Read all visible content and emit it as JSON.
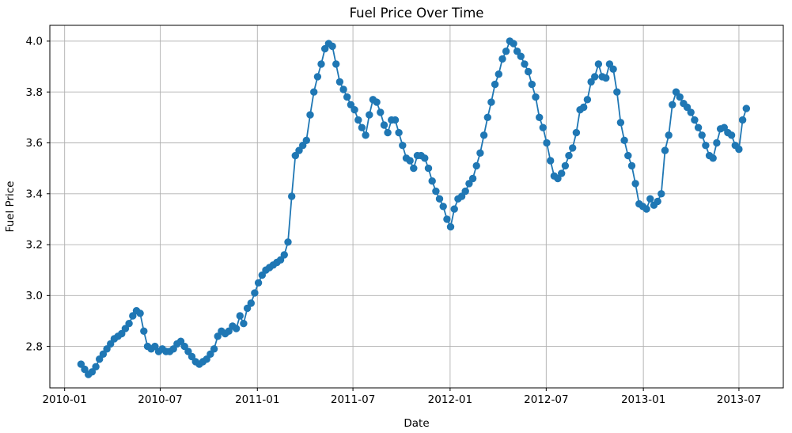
{
  "chart_data": {
    "type": "line",
    "title": "Fuel Price Over Time",
    "xlabel": "Date",
    "ylabel": "Fuel Price",
    "grid": true,
    "legend": "none",
    "background_color": "#ffffff",
    "grid_color": "#b0b0b0",
    "spine_color": "#000000",
    "xlim": [
      "2009-12-04",
      "2013-09-23"
    ],
    "ylim": [
      2.637,
      4.062
    ],
    "yticks": [
      2.8,
      3.0,
      3.2,
      3.4,
      3.6,
      3.8,
      4.0
    ],
    "xticks": [
      {
        "value": "2010-01-01",
        "label": "2010-01"
      },
      {
        "value": "2010-07-01",
        "label": "2010-07"
      },
      {
        "value": "2011-01-01",
        "label": "2011-01"
      },
      {
        "value": "2011-07-01",
        "label": "2011-07"
      },
      {
        "value": "2012-01-01",
        "label": "2012-01"
      },
      {
        "value": "2012-07-01",
        "label": "2012-07"
      },
      {
        "value": "2013-01-01",
        "label": "2013-01"
      },
      {
        "value": "2013-07-01",
        "label": "2013-07"
      }
    ],
    "series": [
      {
        "name": "Fuel Price",
        "color": "#1f77b4",
        "marker": "circle",
        "x": [
          "2010-02-01",
          "2010-02-08",
          "2010-02-15",
          "2010-02-22",
          "2010-03-01",
          "2010-03-08",
          "2010-03-15",
          "2010-03-22",
          "2010-03-29",
          "2010-04-05",
          "2010-04-12",
          "2010-04-19",
          "2010-04-26",
          "2010-05-03",
          "2010-05-10",
          "2010-05-17",
          "2010-05-24",
          "2010-05-31",
          "2010-06-07",
          "2010-06-14",
          "2010-06-21",
          "2010-06-28",
          "2010-07-05",
          "2010-07-12",
          "2010-07-19",
          "2010-07-26",
          "2010-08-02",
          "2010-08-09",
          "2010-08-16",
          "2010-08-23",
          "2010-08-30",
          "2010-09-06",
          "2010-09-13",
          "2010-09-20",
          "2010-09-27",
          "2010-10-04",
          "2010-10-11",
          "2010-10-18",
          "2010-10-25",
          "2010-11-01",
          "2010-11-08",
          "2010-11-15",
          "2010-11-22",
          "2010-11-29",
          "2010-12-06",
          "2010-12-13",
          "2010-12-20",
          "2010-12-27",
          "2011-01-03",
          "2011-01-10",
          "2011-01-17",
          "2011-01-24",
          "2011-01-31",
          "2011-02-07",
          "2011-02-14",
          "2011-02-21",
          "2011-02-28",
          "2011-03-07",
          "2011-03-14",
          "2011-03-21",
          "2011-03-28",
          "2011-04-04",
          "2011-04-11",
          "2011-04-18",
          "2011-04-25",
          "2011-05-02",
          "2011-05-09",
          "2011-05-16",
          "2011-05-23",
          "2011-05-30",
          "2011-06-06",
          "2011-06-13",
          "2011-06-20",
          "2011-06-27",
          "2011-07-04",
          "2011-07-11",
          "2011-07-18",
          "2011-07-25",
          "2011-08-01",
          "2011-08-08",
          "2011-08-15",
          "2011-08-22",
          "2011-08-29",
          "2011-09-05",
          "2011-09-12",
          "2011-09-19",
          "2011-09-26",
          "2011-10-03",
          "2011-10-10",
          "2011-10-17",
          "2011-10-24",
          "2011-10-31",
          "2011-11-07",
          "2011-11-14",
          "2011-11-21",
          "2011-11-28",
          "2011-12-05",
          "2011-12-12",
          "2011-12-19",
          "2011-12-26",
          "2012-01-02",
          "2012-01-09",
          "2012-01-16",
          "2012-01-23",
          "2012-01-30",
          "2012-02-06",
          "2012-02-13",
          "2012-02-20",
          "2012-02-27",
          "2012-03-05",
          "2012-03-12",
          "2012-03-19",
          "2012-03-26",
          "2012-04-02",
          "2012-04-09",
          "2012-04-16",
          "2012-04-23",
          "2012-04-30",
          "2012-05-07",
          "2012-05-14",
          "2012-05-21",
          "2012-05-28",
          "2012-06-04",
          "2012-06-11",
          "2012-06-18",
          "2012-06-25",
          "2012-07-02",
          "2012-07-09",
          "2012-07-16",
          "2012-07-23",
          "2012-07-30",
          "2012-08-06",
          "2012-08-13",
          "2012-08-20",
          "2012-08-27",
          "2012-09-03",
          "2012-09-10",
          "2012-09-17",
          "2012-09-24",
          "2012-10-01",
          "2012-10-08",
          "2012-10-15",
          "2012-10-22",
          "2012-10-29",
          "2012-11-05",
          "2012-11-12",
          "2012-11-19",
          "2012-11-26",
          "2012-12-03",
          "2012-12-10",
          "2012-12-17",
          "2012-12-24",
          "2012-12-31",
          "2013-01-07",
          "2013-01-14",
          "2013-01-21",
          "2013-01-28",
          "2013-02-04",
          "2013-02-11",
          "2013-02-18",
          "2013-02-25",
          "2013-03-04",
          "2013-03-11",
          "2013-03-18",
          "2013-03-25",
          "2013-04-01",
          "2013-04-08",
          "2013-04-15",
          "2013-04-22",
          "2013-04-29",
          "2013-05-06",
          "2013-05-13",
          "2013-05-20",
          "2013-05-27",
          "2013-06-03",
          "2013-06-10",
          "2013-06-17",
          "2013-06-24",
          "2013-07-01",
          "2013-07-08",
          "2013-07-15"
        ],
        "y": [
          2.73,
          2.71,
          2.69,
          2.7,
          2.72,
          2.75,
          2.77,
          2.79,
          2.81,
          2.83,
          2.84,
          2.85,
          2.87,
          2.89,
          2.92,
          2.94,
          2.93,
          2.86,
          2.8,
          2.79,
          2.8,
          2.78,
          2.79,
          2.78,
          2.78,
          2.79,
          2.81,
          2.82,
          2.8,
          2.78,
          2.76,
          2.74,
          2.73,
          2.74,
          2.75,
          2.77,
          2.79,
          2.84,
          2.86,
          2.85,
          2.86,
          2.88,
          2.87,
          2.92,
          2.89,
          2.95,
          2.97,
          3.01,
          3.05,
          3.08,
          3.1,
          3.11,
          3.12,
          3.13,
          3.14,
          3.16,
          3.21,
          3.39,
          3.55,
          3.57,
          3.59,
          3.61,
          3.71,
          3.8,
          3.86,
          3.91,
          3.97,
          3.99,
          3.98,
          3.91,
          3.84,
          3.81,
          3.78,
          3.75,
          3.73,
          3.69,
          3.66,
          3.63,
          3.71,
          3.77,
          3.76,
          3.72,
          3.67,
          3.64,
          3.69,
          3.69,
          3.64,
          3.59,
          3.54,
          3.53,
          3.5,
          3.55,
          3.55,
          3.54,
          3.5,
          3.45,
          3.41,
          3.38,
          3.35,
          3.3,
          3.27,
          3.34,
          3.38,
          3.39,
          3.41,
          3.44,
          3.46,
          3.51,
          3.56,
          3.63,
          3.7,
          3.76,
          3.83,
          3.87,
          3.93,
          3.96,
          4.0,
          3.99,
          3.96,
          3.94,
          3.91,
          3.88,
          3.83,
          3.78,
          3.7,
          3.66,
          3.6,
          3.53,
          3.47,
          3.46,
          3.48,
          3.51,
          3.55,
          3.58,
          3.64,
          3.73,
          3.74,
          3.77,
          3.84,
          3.86,
          3.91,
          3.86,
          3.855,
          3.91,
          3.89,
          3.8,
          3.68,
          3.61,
          3.55,
          3.51,
          3.44,
          3.36,
          3.35,
          3.34,
          3.38,
          3.355,
          3.37,
          3.4,
          3.57,
          3.63,
          3.75,
          3.8,
          3.78,
          3.755,
          3.74,
          3.72,
          3.69,
          3.66,
          3.63,
          3.59,
          3.55,
          3.54,
          3.6,
          3.655,
          3.66,
          3.64,
          3.63,
          3.59,
          3.575,
          3.69,
          3.735
        ]
      }
    ]
  }
}
